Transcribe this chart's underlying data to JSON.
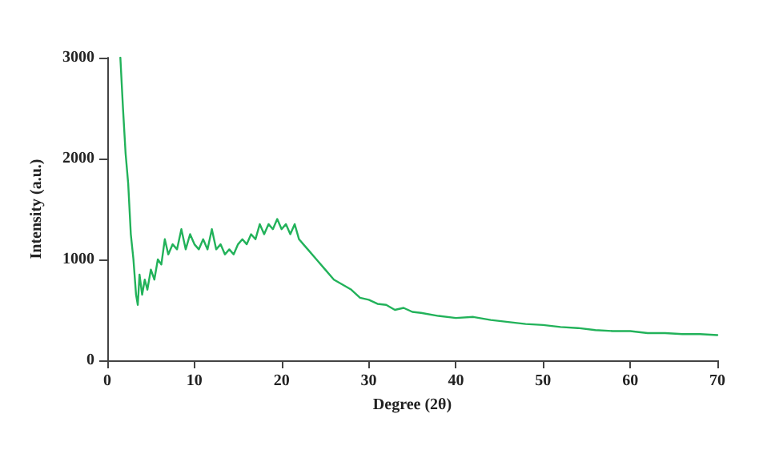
{
  "chart_data": {
    "type": "line",
    "xlabel": "Degree (2θ)",
    "ylabel": "Intensity (a.u.)",
    "xlim": [
      0,
      70
    ],
    "xticks": [
      0,
      10,
      20,
      30,
      40,
      50,
      60,
      70
    ],
    "ylim": [
      0,
      3000
    ],
    "yticks": [
      0,
      1000,
      2000,
      3000
    ],
    "grid": false,
    "marker": "none",
    "line_style": "solid",
    "series": [
      {
        "color": "#22b25a",
        "x": [
          1.5,
          1.8,
          2.1,
          2.4,
          2.7,
          3.0,
          3.3,
          3.5,
          3.7,
          4.0,
          4.3,
          4.6,
          5.0,
          5.4,
          5.8,
          6.2,
          6.6,
          7.0,
          7.5,
          8.0,
          8.5,
          9.0,
          9.5,
          10.0,
          10.5,
          11.0,
          11.5,
          12.0,
          12.5,
          13.0,
          13.5,
          14.0,
          14.5,
          15.0,
          15.5,
          16.0,
          16.5,
          17.0,
          17.5,
          18.0,
          18.5,
          19.0,
          19.5,
          20.0,
          20.5,
          21.0,
          21.5,
          22.0,
          22.5,
          23.0,
          24.0,
          25.0,
          26.0,
          27.0,
          28.0,
          29.0,
          30.0,
          31.0,
          32.0,
          33.0,
          34.0,
          35.0,
          36.0,
          38.0,
          40.0,
          42.0,
          44.0,
          46.0,
          48.0,
          50.0,
          52.0,
          54.0,
          56.0,
          58.0,
          60.0,
          62.0,
          64.0,
          66.0,
          68.0,
          70.0
        ],
        "values": [
          3000,
          2500,
          2050,
          1750,
          1250,
          1000,
          650,
          550,
          850,
          650,
          800,
          700,
          900,
          800,
          1000,
          950,
          1200,
          1050,
          1150,
          1100,
          1300,
          1100,
          1250,
          1150,
          1100,
          1200,
          1100,
          1300,
          1100,
          1150,
          1050,
          1100,
          1050,
          1150,
          1200,
          1150,
          1250,
          1200,
          1350,
          1250,
          1350,
          1300,
          1400,
          1300,
          1350,
          1250,
          1350,
          1200,
          1150,
          1100,
          1000,
          900,
          800,
          750,
          700,
          620,
          600,
          560,
          550,
          500,
          520,
          480,
          470,
          440,
          420,
          430,
          400,
          380,
          360,
          350,
          330,
          320,
          300,
          290,
          290,
          270,
          270,
          260,
          260,
          250
        ]
      }
    ]
  }
}
